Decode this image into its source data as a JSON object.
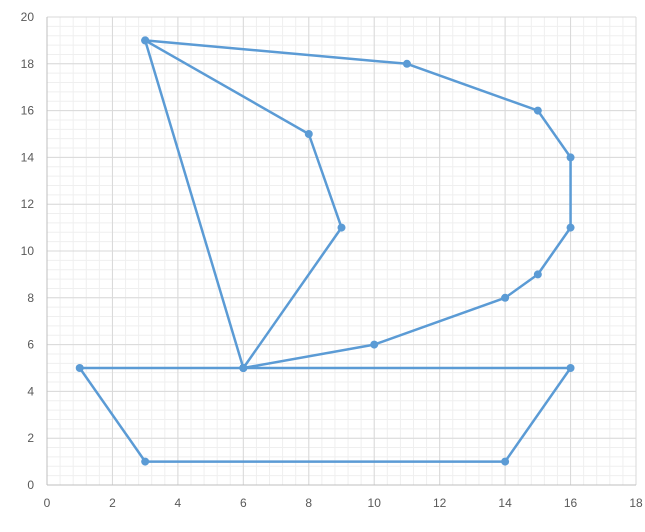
{
  "chart_data": {
    "type": "scatter",
    "title": "",
    "xlabel": "",
    "ylabel": "",
    "xlim": [
      0,
      18
    ],
    "ylim": [
      0,
      20
    ],
    "x_ticks": [
      0,
      2,
      4,
      6,
      8,
      10,
      12,
      14,
      16,
      18
    ],
    "y_ticks": [
      0,
      2,
      4,
      6,
      8,
      10,
      12,
      14,
      16,
      18,
      20
    ],
    "x_tick_labels": [
      "0",
      "2",
      "4",
      "6",
      "8",
      "10",
      "12",
      "14",
      "16",
      "18"
    ],
    "y_tick_labels": [
      "0",
      "2",
      "4",
      "6",
      "8",
      "10",
      "12",
      "14",
      "16",
      "18",
      "20"
    ],
    "grid": true,
    "minor_grid": true,
    "legend": "none",
    "line_color": "#5B9BD5",
    "series": [
      {
        "points": [
          [
            3,
            19
          ],
          [
            11,
            18
          ],
          [
            15,
            16
          ],
          [
            16,
            14
          ],
          [
            16,
            11
          ],
          [
            15,
            9
          ],
          [
            14,
            8
          ],
          [
            10,
            6
          ],
          [
            6,
            5
          ],
          [
            9,
            11
          ],
          [
            8,
            15
          ],
          [
            3,
            19
          ],
          [
            6,
            5
          ],
          [
            1,
            5
          ],
          [
            3,
            1
          ],
          [
            14,
            1
          ],
          [
            16,
            5
          ],
          [
            6,
            5
          ]
        ]
      }
    ]
  }
}
